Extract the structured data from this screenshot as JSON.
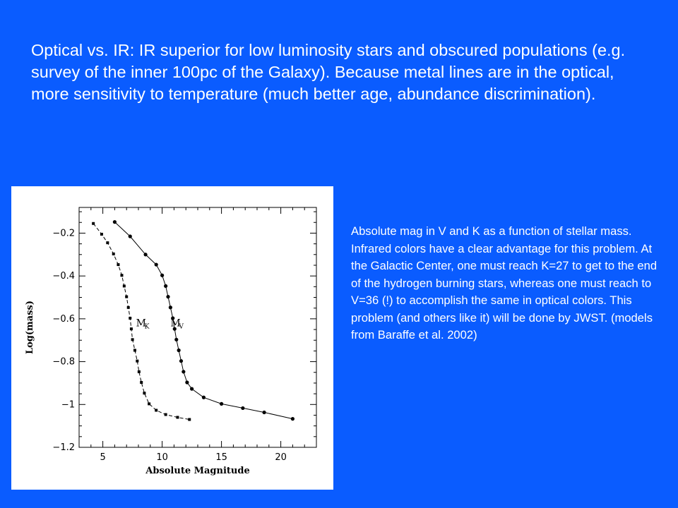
{
  "slide": {
    "heading_text": "Optical vs. IR: IR superior for low luminosity stars and obscured populations (e.g. survey of the inner 100pc of the Galaxy).   Because metal lines are in the optical, more sensitivity to temperature (much better age, abundance discrimination).",
    "caption_text": "Absolute mag  in V and K as a function of stellar mass.  Infrared colors have a clear advantage for this problem.  At the Galactic Center, one must reach K=27 to get to the end of the hydrogen burning stars, whereas one must reach to V=36 (!) to accomplish the same in optical colors.  This problem (and others like it) will be done by JWST.  (models from Baraffe et al. 2002)",
    "background_color": "#0a5cff",
    "text_color": "#ffffff"
  },
  "chart_data": {
    "type": "line",
    "title": "",
    "xlabel": "Absolute Magnitude",
    "ylabel": "Log(mass)",
    "xlim": [
      3,
      23
    ],
    "ylim": [
      -1.2,
      -0.08
    ],
    "x_ticks": [
      5,
      10,
      15,
      20
    ],
    "y_ticks": [
      -0.2,
      -0.4,
      -0.6,
      -0.8,
      -1,
      -1.2
    ],
    "x_tick_labels": [
      "5",
      "10",
      "15",
      "20"
    ],
    "y_tick_labels": [
      "−0.2",
      "−0.4",
      "−0.6",
      "−0.8",
      "−1",
      "−1.2"
    ],
    "grid": false,
    "series": [
      {
        "label_main": "M",
        "label_sub": "K",
        "style": "dashed",
        "marker": "square",
        "label_anchor": [
          7.8,
          -0.635
        ],
        "points": [
          [
            4.2,
            -0.155
          ],
          [
            4.9,
            -0.205
          ],
          [
            5.4,
            -0.245
          ],
          [
            5.9,
            -0.297
          ],
          [
            6.3,
            -0.347
          ],
          [
            6.6,
            -0.397
          ],
          [
            6.8,
            -0.447
          ],
          [
            7.0,
            -0.497
          ],
          [
            7.15,
            -0.547
          ],
          [
            7.3,
            -0.597
          ],
          [
            7.4,
            -0.647
          ],
          [
            7.5,
            -0.697
          ],
          [
            7.7,
            -0.747
          ],
          [
            7.9,
            -0.797
          ],
          [
            8.05,
            -0.847
          ],
          [
            8.25,
            -0.897
          ],
          [
            8.5,
            -0.947
          ],
          [
            8.9,
            -0.997
          ],
          [
            9.5,
            -1.027
          ],
          [
            10.3,
            -1.047
          ],
          [
            11.3,
            -1.06
          ],
          [
            12.3,
            -1.07
          ]
        ]
      },
      {
        "label_main": "M",
        "label_sub": "V",
        "style": "solid",
        "marker": "circle",
        "label_anchor": [
          10.7,
          -0.635
        ],
        "points": [
          [
            6.0,
            -0.148
          ],
          [
            7.3,
            -0.215
          ],
          [
            8.6,
            -0.3
          ],
          [
            9.5,
            -0.347
          ],
          [
            10.0,
            -0.397
          ],
          [
            10.3,
            -0.447
          ],
          [
            10.5,
            -0.497
          ],
          [
            10.7,
            -0.547
          ],
          [
            10.9,
            -0.597
          ],
          [
            11.05,
            -0.647
          ],
          [
            11.2,
            -0.697
          ],
          [
            11.4,
            -0.747
          ],
          [
            11.6,
            -0.797
          ],
          [
            11.8,
            -0.847
          ],
          [
            12.1,
            -0.897
          ],
          [
            12.5,
            -0.927
          ],
          [
            13.5,
            -0.967
          ],
          [
            15.0,
            -0.997
          ],
          [
            16.8,
            -1.017
          ],
          [
            18.6,
            -1.037
          ],
          [
            21.0,
            -1.067
          ]
        ]
      }
    ]
  }
}
